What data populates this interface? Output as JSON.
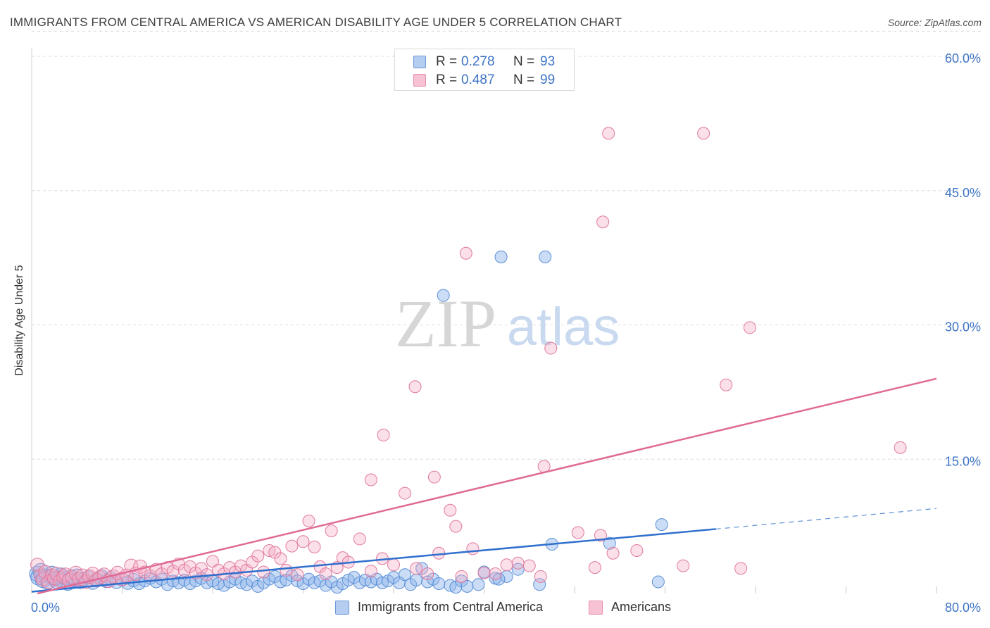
{
  "title": "IMMIGRANTS FROM CENTRAL AMERICA VS AMERICAN DISABILITY AGE UNDER 5 CORRELATION CHART",
  "source": "Source: ZipAtlas.com",
  "watermark": {
    "zip": "ZIP",
    "atlas": "atlas"
  },
  "legend_top": [
    {
      "r_label": "R =",
      "r_value": "0.278",
      "n_label": "N =",
      "n_value": "93",
      "color": "#6b9bd8"
    },
    {
      "r_label": "R =",
      "r_value": "0.487",
      "n_label": "N =",
      "n_value": "99",
      "color": "#e890ac"
    }
  ],
  "legend_bottom": [
    {
      "label": "Immigrants from Central America",
      "color": "#6b9bd8"
    },
    {
      "label": "Americans",
      "color": "#e890ac"
    }
  ],
  "chart_data": {
    "type": "scatter",
    "title": "IMMIGRANTS FROM CENTRAL AMERICA VS AMERICAN DISABILITY AGE UNDER 5 CORRELATION CHART",
    "xlabel": "",
    "ylabel": "Disability Age Under 5",
    "xlim": [
      0,
      80
    ],
    "ylim": [
      0,
      60
    ],
    "x_tick_labels": [
      "0.0%",
      "80.0%"
    ],
    "y_ticks": [
      15,
      30,
      45,
      60
    ],
    "y_tick_labels": [
      "15.0%",
      "30.0%",
      "45.0%",
      "60.0%"
    ],
    "grid": true,
    "series": [
      {
        "name": "Immigrants from Central America",
        "color": "#6b9bd8",
        "stroke": "#5b8fd6",
        "r": 0.278,
        "n": 93,
        "trend": {
          "x0": 0,
          "y0": 0.2,
          "x1": 60.5,
          "y1": 7.2,
          "dash_x1": 80,
          "dash_y1": 9.5
        },
        "points": [
          [
            0.5,
            2.2
          ],
          [
            0.6,
            1.8
          ],
          [
            0.8,
            2.5
          ],
          [
            1.0,
            1.5
          ],
          [
            1.2,
            2.0
          ],
          [
            1.4,
            1.2
          ],
          [
            1.6,
            1.9
          ],
          [
            1.8,
            2.3
          ],
          [
            2.0,
            1.6
          ],
          [
            2.2,
            1.3
          ],
          [
            2.4,
            1.8
          ],
          [
            2.6,
            2.1
          ],
          [
            2.8,
            1.4
          ],
          [
            3.0,
            1.7
          ],
          [
            3.2,
            1.1
          ],
          [
            3.5,
            1.9
          ],
          [
            3.8,
            1.5
          ],
          [
            4.0,
            2.0
          ],
          [
            4.3,
            1.3
          ],
          [
            4.6,
            1.6
          ],
          [
            5.0,
            1.8
          ],
          [
            5.4,
            1.2
          ],
          [
            5.8,
            1.5
          ],
          [
            6.2,
            1.9
          ],
          [
            6.6,
            1.4
          ],
          [
            7.0,
            1.7
          ],
          [
            7.5,
            1.3
          ],
          [
            8.0,
            1.6
          ],
          [
            8.5,
            1.2
          ],
          [
            9.0,
            1.5
          ],
          [
            9.5,
            1.1
          ],
          [
            10.0,
            1.4
          ],
          [
            10.5,
            1.7
          ],
          [
            11.0,
            1.3
          ],
          [
            11.5,
            1.6
          ],
          [
            12.0,
            1.0
          ],
          [
            12.5,
            1.4
          ],
          [
            13.0,
            1.2
          ],
          [
            13.5,
            1.5
          ],
          [
            14.0,
            1.1
          ],
          [
            14.5,
            1.4
          ],
          [
            15.0,
            1.7
          ],
          [
            15.5,
            1.2
          ],
          [
            16.0,
            1.4
          ],
          [
            16.5,
            1.1
          ],
          [
            17.0,
            0.9
          ],
          [
            17.5,
            1.3
          ],
          [
            18.0,
            1.6
          ],
          [
            18.5,
            1.2
          ],
          [
            19.0,
            1.0
          ],
          [
            19.5,
            1.4
          ],
          [
            20.0,
            0.8
          ],
          [
            20.5,
            1.2
          ],
          [
            21.0,
            1.6
          ],
          [
            21.5,
            1.9
          ],
          [
            22.0,
            1.3
          ],
          [
            22.5,
            1.5
          ],
          [
            23.0,
            2.0
          ],
          [
            23.5,
            1.4
          ],
          [
            24.0,
            1.1
          ],
          [
            24.5,
            1.6
          ],
          [
            25.0,
            1.2
          ],
          [
            25.5,
            1.4
          ],
          [
            26.0,
            0.9
          ],
          [
            26.5,
            1.3
          ],
          [
            27.0,
            0.7
          ],
          [
            27.5,
            1.1
          ],
          [
            28.0,
            1.5
          ],
          [
            28.5,
            1.8
          ],
          [
            29.0,
            1.2
          ],
          [
            29.5,
            1.5
          ],
          [
            30.0,
            1.3
          ],
          [
            30.5,
            1.6
          ],
          [
            31.0,
            1.2
          ],
          [
            31.5,
            1.4
          ],
          [
            32.0,
            1.8
          ],
          [
            32.5,
            1.2
          ],
          [
            33.0,
            2.1
          ],
          [
            33.5,
            1.0
          ],
          [
            34.0,
            1.5
          ],
          [
            34.5,
            2.8
          ],
          [
            35.0,
            1.3
          ],
          [
            35.5,
            1.6
          ],
          [
            36.0,
            1.1
          ],
          [
            37.0,
            0.9
          ],
          [
            37.5,
            0.7
          ],
          [
            38.0,
            1.4
          ],
          [
            38.5,
            0.8
          ],
          [
            39.5,
            1.0
          ],
          [
            40.0,
            2.4
          ],
          [
            41.0,
            1.7
          ],
          [
            42.0,
            1.9
          ],
          [
            43.0,
            2.7
          ]
        ],
        "outliers": [
          [
            36.4,
            33.3
          ],
          [
            41.5,
            37.6
          ],
          [
            45.4,
            37.6
          ],
          [
            46.0,
            5.5
          ],
          [
            51.1,
            5.6
          ],
          [
            55.4,
            1.3
          ],
          [
            55.7,
            7.7
          ],
          [
            44.9,
            1.0
          ],
          [
            41.3,
            1.6
          ]
        ]
      },
      {
        "name": "Americans",
        "color": "#e890ac",
        "stroke": "#e07a9e",
        "r": 0.487,
        "n": 99,
        "trend": {
          "x0": 0.5,
          "y0": 0.0,
          "x1": 80,
          "y1": 24.0
        },
        "points": [
          [
            0.5,
            3.2
          ],
          [
            0.8,
            2.0
          ],
          [
            1.0,
            1.6
          ],
          [
            1.2,
            2.4
          ],
          [
            1.5,
            1.3
          ],
          [
            1.8,
            2.0
          ],
          [
            2.0,
            1.7
          ],
          [
            2.2,
            2.2
          ],
          [
            2.5,
            1.4
          ],
          [
            2.8,
            1.9
          ],
          [
            3.0,
            2.1
          ],
          [
            3.3,
            1.5
          ],
          [
            3.6,
            1.8
          ],
          [
            3.9,
            2.3
          ],
          [
            4.2,
            1.6
          ],
          [
            4.5,
            2.0
          ],
          [
            4.8,
            1.3
          ],
          [
            5.1,
            1.9
          ],
          [
            5.4,
            2.2
          ],
          [
            5.7,
            1.5
          ],
          [
            6.0,
            1.8
          ],
          [
            6.4,
            2.1
          ],
          [
            6.8,
            1.4
          ],
          [
            7.2,
            1.9
          ],
          [
            7.6,
            2.3
          ],
          [
            8.0,
            1.6
          ],
          [
            8.4,
            2.0
          ],
          [
            8.8,
            3.1
          ],
          [
            9.2,
            2.2
          ],
          [
            9.6,
            3.0
          ],
          [
            10.0,
            2.4
          ],
          [
            10.5,
            2.0
          ],
          [
            11.0,
            2.7
          ],
          [
            11.5,
            2.2
          ],
          [
            12.0,
            2.9
          ],
          [
            12.5,
            2.5
          ],
          [
            13.0,
            3.3
          ],
          [
            13.5,
            2.6
          ],
          [
            14.0,
            3.0
          ],
          [
            14.5,
            2.3
          ],
          [
            15.0,
            2.8
          ],
          [
            15.5,
            2.1
          ],
          [
            16.0,
            3.6
          ],
          [
            16.5,
            2.6
          ],
          [
            17.0,
            2.2
          ],
          [
            17.5,
            2.9
          ],
          [
            18.0,
            2.4
          ],
          [
            18.5,
            3.1
          ],
          [
            19.0,
            2.6
          ],
          [
            19.5,
            3.5
          ],
          [
            20.0,
            4.2
          ],
          [
            20.5,
            2.4
          ],
          [
            21.0,
            4.8
          ],
          [
            21.5,
            4.6
          ],
          [
            22.0,
            3.9
          ],
          [
            22.5,
            2.6
          ],
          [
            23.0,
            5.3
          ],
          [
            23.5,
            2.1
          ],
          [
            24.0,
            5.8
          ],
          [
            24.5,
            8.1
          ],
          [
            25.0,
            5.2
          ],
          [
            25.5,
            3.0
          ],
          [
            26.0,
            2.2
          ],
          [
            26.5,
            7.0
          ],
          [
            27.0,
            2.9
          ],
          [
            27.5,
            4.0
          ],
          [
            28.0,
            3.5
          ],
          [
            29.0,
            6.1
          ],
          [
            30.0,
            2.5
          ],
          [
            31.0,
            3.9
          ],
          [
            32.0,
            3.2
          ],
          [
            33.0,
            11.2
          ],
          [
            34.0,
            2.8
          ],
          [
            35.0,
            2.2
          ],
          [
            36.0,
            4.5
          ],
          [
            37.0,
            9.3
          ],
          [
            37.5,
            7.5
          ],
          [
            38.0,
            1.9
          ],
          [
            39.0,
            5.0
          ],
          [
            40.0,
            2.3
          ],
          [
            41.0,
            2.2
          ],
          [
            42.0,
            3.2
          ],
          [
            43.0,
            3.4
          ],
          [
            44.0,
            3.1
          ],
          [
            45.0,
            1.9
          ]
        ],
        "outliers": [
          [
            38.4,
            38.0
          ],
          [
            33.9,
            23.1
          ],
          [
            31.1,
            17.7
          ],
          [
            30.0,
            12.7
          ],
          [
            35.6,
            13.0
          ],
          [
            45.3,
            14.2
          ],
          [
            45.9,
            27.4
          ],
          [
            50.5,
            41.5
          ],
          [
            51.0,
            51.4
          ],
          [
            59.4,
            51.4
          ],
          [
            63.5,
            29.7
          ],
          [
            61.4,
            23.3
          ],
          [
            76.8,
            16.3
          ],
          [
            48.3,
            6.8
          ],
          [
            50.3,
            6.5
          ],
          [
            51.4,
            4.5
          ],
          [
            53.5,
            4.8
          ],
          [
            57.6,
            3.1
          ],
          [
            62.7,
            2.8
          ],
          [
            49.8,
            2.9
          ]
        ]
      }
    ]
  }
}
